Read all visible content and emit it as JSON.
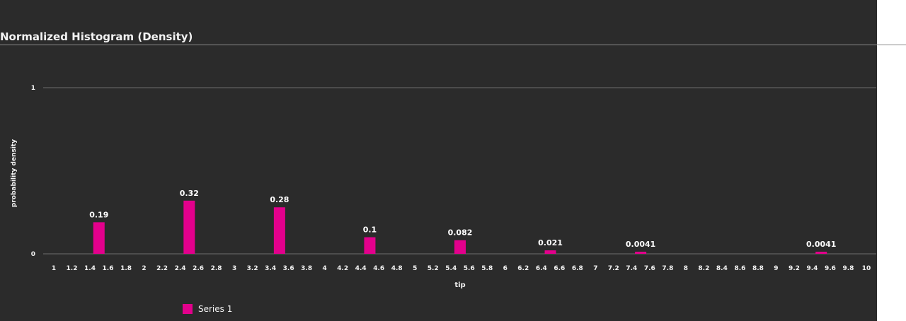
{
  "chart_data": {
    "type": "bar",
    "title": "Normalized Histogram (Density)",
    "xlabel": "tip",
    "ylabel": "probability density",
    "ylim": [
      0,
      1
    ],
    "y_ticks": [
      "0",
      "1"
    ],
    "x_ticks": [
      "1",
      "1.2",
      "1.4",
      "1.6",
      "1.8",
      "2",
      "2.2",
      "2.4",
      "2.6",
      "2.8",
      "3",
      "3.2",
      "3.4",
      "3.6",
      "3.8",
      "4",
      "4.2",
      "4.4",
      "4.6",
      "4.8",
      "5",
      "5.2",
      "5.4",
      "5.6",
      "5.8",
      "6",
      "6.2",
      "6.4",
      "6.6",
      "6.8",
      "7",
      "7.2",
      "7.4",
      "7.6",
      "7.8",
      "8",
      "8.2",
      "8.4",
      "8.6",
      "8.8",
      "9",
      "9.2",
      "9.4",
      "9.6",
      "9.8",
      "10"
    ],
    "xlim": [
      1,
      10
    ],
    "grid": true,
    "legend_position": "bottom-left",
    "series": [
      {
        "name": "Series 1",
        "color": "#e3008c",
        "bars": [
          {
            "x": 1.5,
            "value": 0.19,
            "label": "0.19"
          },
          {
            "x": 2.5,
            "value": 0.32,
            "label": "0.32"
          },
          {
            "x": 3.5,
            "value": 0.28,
            "label": "0.28"
          },
          {
            "x": 4.5,
            "value": 0.1,
            "label": "0.1"
          },
          {
            "x": 5.5,
            "value": 0.082,
            "label": "0.082"
          },
          {
            "x": 6.5,
            "value": 0.021,
            "label": "0.021"
          },
          {
            "x": 7.5,
            "value": 0.0041,
            "label": "0.0041"
          },
          {
            "x": 9.5,
            "value": 0.0041,
            "label": "0.0041"
          }
        ]
      }
    ]
  }
}
